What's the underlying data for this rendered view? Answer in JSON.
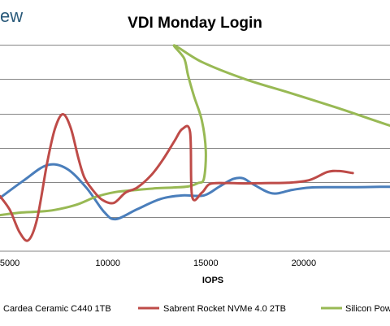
{
  "logo": {
    "text": "ew"
  },
  "chart_data": {
    "type": "line",
    "title": "VDI Monday Login",
    "xlabel": "IOPS",
    "ylabel": "",
    "xlim": [
      4500,
      24400
    ],
    "ylim": [
      0,
      6
    ],
    "grid": true,
    "legend": "bottom",
    "x_ticks": [
      5000,
      10000,
      15000,
      20000
    ],
    "series": [
      {
        "name": "Cardea Ceramic C440 1TB",
        "color": "#4a7ebb",
        "x": [
          4500,
          5700,
          6900,
          7900,
          8900,
          9800,
          10400,
          11500,
          12700,
          13800,
          14900,
          15700,
          16400,
          16900,
          17400,
          18400,
          19400,
          20300,
          21500,
          22700,
          23900,
          24400
        ],
        "y": [
          1.55,
          2.05,
          2.5,
          2.4,
          1.85,
          1.15,
          0.93,
          1.22,
          1.52,
          1.62,
          1.62,
          1.88,
          2.1,
          2.12,
          1.95,
          1.68,
          1.78,
          1.85,
          1.86,
          1.86,
          1.87,
          1.87
        ]
      },
      {
        "name": "Sabrent Rocket NVMe 4.0 2TB",
        "color": "#be4b48",
        "x": [
          4500,
          5000,
          5500,
          5950,
          6400,
          6900,
          7300,
          7700,
          8100,
          8500,
          8800,
          9200,
          9700,
          10300,
          10900,
          11500,
          12200,
          12800,
          13400,
          13800,
          14200,
          14300,
          14800,
          15200,
          16000,
          17000,
          18000,
          19200,
          20300,
          21200,
          21800,
          22500
        ],
        "y": [
          1.6,
          1.2,
          0.55,
          0.32,
          0.95,
          2.55,
          3.55,
          3.98,
          3.6,
          2.7,
          2.15,
          1.8,
          1.5,
          1.4,
          1.7,
          1.85,
          2.2,
          2.65,
          3.2,
          3.55,
          3.45,
          1.6,
          1.7,
          1.95,
          1.98,
          1.97,
          1.98,
          1.99,
          2.07,
          2.3,
          2.33,
          2.27
        ]
      },
      {
        "name": "Silicon Power",
        "color": "#98b954",
        "x": [
          4500,
          5500,
          6500,
          7300,
          8400,
          9400,
          10400,
          11500,
          12500,
          13300,
          14100,
          14600,
          14900,
          15000,
          14800,
          14400,
          14100,
          13900,
          13400,
          14800,
          17000,
          19300,
          21800,
          23600,
          24400
        ],
        "y": [
          1.05,
          1.12,
          1.15,
          1.2,
          1.35,
          1.58,
          1.72,
          1.78,
          1.83,
          1.85,
          1.88,
          1.98,
          2.1,
          2.9,
          3.8,
          4.5,
          5.1,
          5.6,
          5.98,
          5.5,
          5.0,
          4.6,
          4.15,
          3.8,
          3.65
        ]
      }
    ]
  }
}
